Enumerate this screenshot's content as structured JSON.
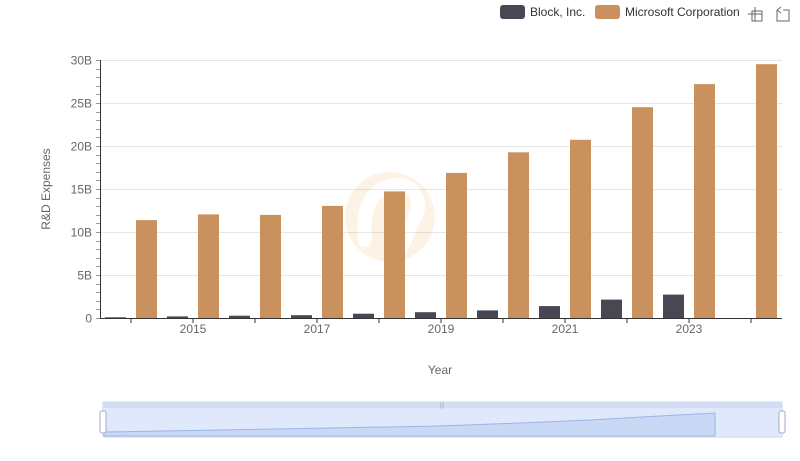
{
  "toolbar": {
    "icons": [
      "zoom-select-icon",
      "zoom-reset-icon"
    ]
  },
  "chart_data": {
    "type": "bar",
    "xlabel": "Year",
    "ylabel": "R&D Expenses",
    "categories": [
      "2014",
      "2015",
      "2016",
      "2017",
      "2018",
      "2019",
      "2020",
      "2021",
      "2022",
      "2023",
      "2024"
    ],
    "x_tick_labels": [
      "2015",
      "2017",
      "2019",
      "2021",
      "2023"
    ],
    "y_tick_labels": [
      "0",
      "5B",
      "10B",
      "15B",
      "20B",
      "25B",
      "30B"
    ],
    "ylim": [
      0,
      30000000000
    ],
    "grid": true,
    "legend_position": "top-right",
    "series": [
      {
        "name": "Block, Inc.",
        "color": "#484854",
        "values": [
          82000000,
          185000000,
          268000000,
          322000000,
          497000000,
          671000000,
          882000000,
          1383000000,
          2138000000,
          2720000000,
          null
        ]
      },
      {
        "name": "Microsoft Corporation",
        "color": "#c8915e",
        "values": [
          11381000000,
          12046000000,
          11988000000,
          13037000000,
          14726000000,
          16876000000,
          19269000000,
          20716000000,
          24512000000,
          27195000000,
          29510000000
        ]
      }
    ]
  }
}
